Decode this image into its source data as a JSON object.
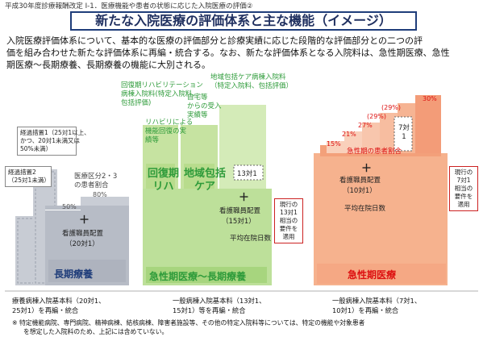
{
  "header": {
    "breadcrumb": "平成30年度診療報酬改定 Ⅰ-1．医療機能や患者の状態に応じた入院医療の評価②"
  },
  "title": "新たな入院医療の評価体系と主な機能（イメージ）",
  "intro": {
    "line1": "入院医療評価体系について、基本的な医療の評価部分と診療実績に応じた段階的な評価部分との二つの評",
    "line2": "価を組み合わせた新たな評価体系に再編・統合する。なお、新たな評価体系となる入院料は、急性期医療、急性",
    "line3": "期医療～長期療養、長期療養の機能に大別される。"
  },
  "long_term": {
    "note1": [
      "経過措置1（25対1以上、",
      "かつ、20対1未満又は",
      "50%未満）"
    ],
    "note2": [
      "経過措置2",
      "（25対1未満）"
    ],
    "category": [
      "医療区分2・3",
      "の患者割合"
    ],
    "pct_low": "50%",
    "pct_high": "80%",
    "plus": "＋",
    "staff": "看護職員配置",
    "staff_ratio": "（20対1）",
    "label": "長期療養"
  },
  "mid": {
    "rehab_top": [
      "回復期リハビリテーション",
      "病棟入院料(特定入院料、",
      "包括評価)"
    ],
    "community_top": [
      "地域包括ケア病棟入院料",
      "（特定入院料、包括評価）"
    ],
    "rehab_perf": [
      "リハビリによる",
      "機能回復の実",
      "績等"
    ],
    "community_perf": [
      "自宅等",
      "からの受入",
      "実績等"
    ],
    "rehab_big": [
      "回復期",
      "リハ"
    ],
    "community_big": [
      "地域包括",
      "ケア"
    ],
    "ratio13": "13対1",
    "plus": "＋",
    "staff": "看護職員配置",
    "staff_ratio": "（15対1）",
    "avg_days": "平均在院日数",
    "note": [
      "現行の",
      "13対1",
      "相当の",
      "要件を",
      "適用"
    ],
    "label": "急性期医療～長期療養"
  },
  "acute": {
    "pcts": [
      "15%",
      "21%",
      "27%",
      "(29%)",
      "(29%)",
      "30%"
    ],
    "ratio7": [
      "7対",
      "1"
    ],
    "severity": "急性期の患者割合",
    "plus": "＋",
    "staff": "看護職員配置",
    "staff_ratio": "（10対1）",
    "avg_days": "平均在院日数",
    "note": [
      "現行の",
      "7対1",
      "相当の",
      "要件を",
      "適用"
    ],
    "label": "急性期医療"
  },
  "footer": {
    "col1": [
      "療養病棟入院基本料（20対1、",
      "25対1）を再編・統合"
    ],
    "col2": [
      "一般病棟入院基本料（13対1、",
      "15対1）等を再編・統合"
    ],
    "col3": [
      "一般病棟入院基本料（7対1、",
      "10対1）を再編・統合"
    ],
    "remark": [
      "※ 特定機能病院、専門病院、精神病棟、結核病棟、障害者施設等、その他の特定入院料等については、特定の機能や対象患者",
      "を想定した入院料のため、上記には含めていない。"
    ]
  },
  "colors": {
    "navy": "#1f3d7a",
    "green": "#2e9b3a",
    "red": "#d11111",
    "light_green": "#c6e3a1",
    "salmon": "#f4a584",
    "gray": "#b7bcc6"
  }
}
